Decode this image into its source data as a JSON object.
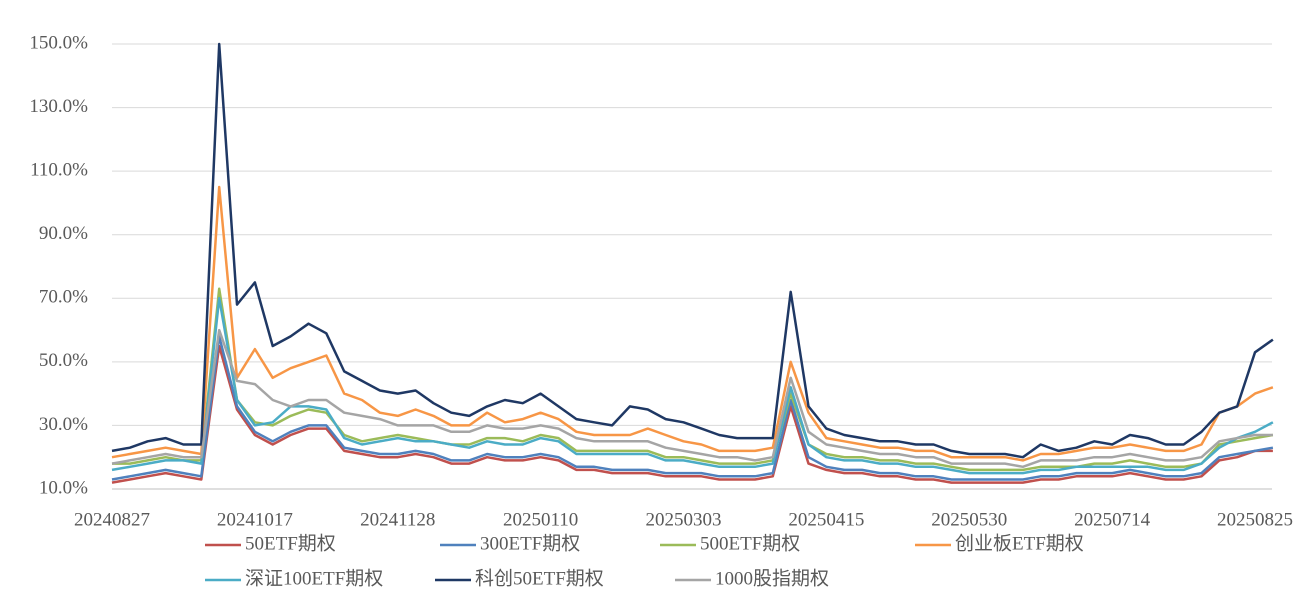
{
  "chart_data": {
    "type": "line",
    "categories": [
      "20240827",
      null,
      null,
      null,
      null,
      null,
      null,
      null,
      "20241017",
      null,
      null,
      null,
      null,
      null,
      null,
      null,
      "20241128",
      null,
      null,
      null,
      null,
      null,
      null,
      null,
      "20250110",
      null,
      null,
      null,
      null,
      null,
      null,
      null,
      "20250303",
      null,
      null,
      null,
      null,
      null,
      null,
      null,
      "20250415",
      null,
      null,
      null,
      null,
      null,
      null,
      null,
      "20250530",
      null,
      null,
      null,
      null,
      null,
      null,
      null,
      "20250714",
      null,
      null,
      null,
      null,
      null,
      null,
      null,
      "20250825",
      null
    ],
    "ylim": [
      10,
      150
    ],
    "yticks": [
      {
        "value": 10,
        "label": "10.0%"
      },
      {
        "value": 30,
        "label": "30.0%"
      },
      {
        "value": 50,
        "label": "50.0%"
      },
      {
        "value": 70,
        "label": "70.0%"
      },
      {
        "value": 90,
        "label": "90.0%"
      },
      {
        "value": 110,
        "label": "110.0%"
      },
      {
        "value": 130,
        "label": "130.0%"
      },
      {
        "value": 150,
        "label": "150.0%"
      }
    ],
    "grid": true,
    "legend": "bottom",
    "series": [
      {
        "name": "50ETF期权",
        "color": "#c0504d",
        "values": [
          12,
          13,
          14,
          15,
          14,
          13,
          55,
          35,
          27,
          24,
          27,
          29,
          29,
          22,
          21,
          20,
          20,
          21,
          20,
          18,
          18,
          20,
          19,
          19,
          20,
          19,
          16,
          16,
          15,
          15,
          15,
          14,
          14,
          14,
          13,
          13,
          13,
          14,
          36,
          18,
          16,
          15,
          15,
          14,
          14,
          13,
          13,
          12,
          12,
          12,
          12,
          12,
          13,
          13,
          14,
          14,
          14,
          15,
          14,
          13,
          13,
          14,
          19,
          20,
          22,
          22
        ]
      },
      {
        "name": "300ETF期权",
        "color": "#4f81bd",
        "values": [
          13,
          14,
          15,
          16,
          15,
          14,
          58,
          36,
          28,
          25,
          28,
          30,
          30,
          23,
          22,
          21,
          21,
          22,
          21,
          19,
          19,
          21,
          20,
          20,
          21,
          20,
          17,
          17,
          16,
          16,
          16,
          15,
          15,
          15,
          14,
          14,
          14,
          15,
          38,
          20,
          17,
          16,
          16,
          15,
          15,
          14,
          14,
          13,
          13,
          13,
          13,
          13,
          14,
          14,
          15,
          15,
          15,
          16,
          15,
          14,
          14,
          15,
          20,
          21,
          22,
          23
        ]
      },
      {
        "name": "500ETF期权",
        "color": "#9bbb59",
        "values": [
          18,
          18,
          19,
          20,
          19,
          19,
          73,
          38,
          31,
          30,
          33,
          35,
          34,
          27,
          25,
          26,
          27,
          26,
          25,
          24,
          24,
          26,
          26,
          25,
          27,
          26,
          22,
          22,
          22,
          22,
          22,
          20,
          20,
          19,
          18,
          18,
          18,
          19,
          40,
          24,
          21,
          20,
          20,
          19,
          19,
          18,
          18,
          17,
          16,
          16,
          16,
          16,
          17,
          17,
          17,
          18,
          18,
          19,
          18,
          17,
          17,
          18,
          24,
          25,
          26,
          27
        ]
      },
      {
        "name": "创业板ETF期权",
        "color": "#f79646",
        "values": [
          20,
          21,
          22,
          23,
          22,
          21,
          105,
          45,
          54,
          45,
          48,
          50,
          52,
          40,
          38,
          34,
          33,
          35,
          33,
          30,
          30,
          34,
          31,
          32,
          34,
          32,
          28,
          27,
          27,
          27,
          29,
          27,
          25,
          24,
          22,
          22,
          22,
          23,
          50,
          34,
          26,
          25,
          24,
          23,
          23,
          22,
          22,
          20,
          20,
          20,
          20,
          19,
          21,
          21,
          22,
          23,
          23,
          24,
          23,
          22,
          22,
          24,
          34,
          36,
          40,
          42
        ]
      },
      {
        "name": "深证100ETF期权",
        "color": "#4bacc6",
        "values": [
          16,
          17,
          18,
          19,
          19,
          18,
          70,
          38,
          30,
          31,
          36,
          36,
          35,
          26,
          24,
          25,
          26,
          25,
          25,
          24,
          23,
          25,
          24,
          24,
          26,
          25,
          21,
          21,
          21,
          21,
          21,
          19,
          19,
          18,
          17,
          17,
          17,
          18,
          42,
          24,
          20,
          19,
          19,
          18,
          18,
          17,
          17,
          16,
          15,
          15,
          15,
          15,
          16,
          16,
          17,
          17,
          17,
          17,
          17,
          16,
          16,
          18,
          23,
          26,
          28,
          31
        ]
      },
      {
        "name": "科创50ETF期权",
        "color": "#1f3864",
        "values": [
          22,
          23,
          25,
          26,
          24,
          24,
          150,
          68,
          75,
          55,
          58,
          62,
          59,
          47,
          44,
          41,
          40,
          41,
          37,
          34,
          33,
          36,
          38,
          37,
          40,
          36,
          32,
          31,
          30,
          36,
          35,
          32,
          31,
          29,
          27,
          26,
          26,
          26,
          72,
          36,
          29,
          27,
          26,
          25,
          25,
          24,
          24,
          22,
          21,
          21,
          21,
          20,
          24,
          22,
          23,
          25,
          24,
          27,
          26,
          24,
          24,
          28,
          34,
          36,
          53,
          57
        ]
      },
      {
        "name": "1000股指期权",
        "color": "#a5a5a5",
        "values": [
          18,
          19,
          20,
          21,
          20,
          20,
          60,
          44,
          43,
          38,
          36,
          38,
          38,
          34,
          33,
          32,
          30,
          30,
          30,
          28,
          28,
          30,
          29,
          29,
          30,
          29,
          26,
          25,
          25,
          25,
          25,
          23,
          22,
          21,
          20,
          20,
          19,
          20,
          45,
          28,
          24,
          23,
          22,
          21,
          21,
          20,
          20,
          18,
          18,
          18,
          18,
          17,
          19,
          19,
          19,
          20,
          20,
          21,
          20,
          19,
          19,
          20,
          25,
          26,
          27,
          27
        ]
      }
    ]
  }
}
